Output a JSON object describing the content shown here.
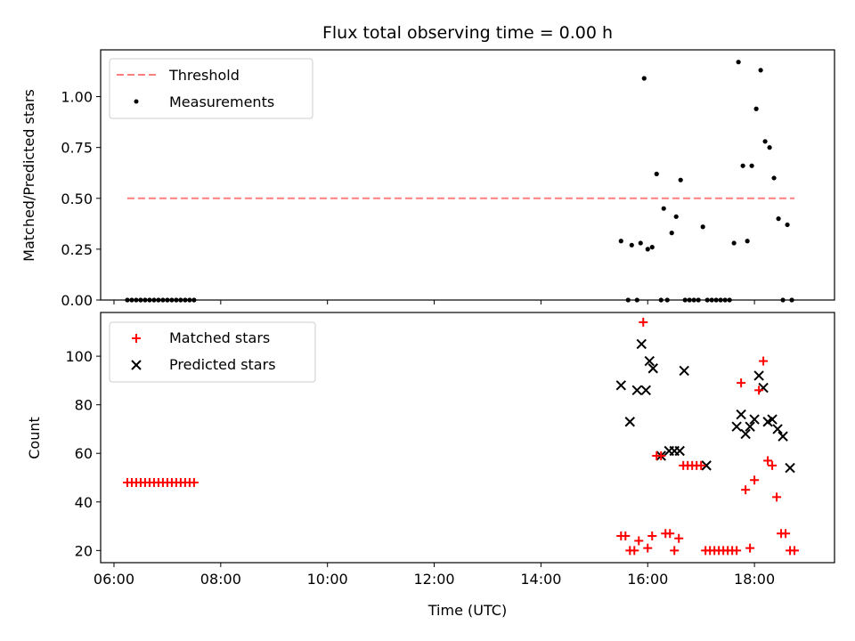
{
  "chart_data": [
    {
      "type": "scatter",
      "title": "Flux total observing time = 0.00 h",
      "ylabel": "Matched/Predicted stars",
      "xlim": [
        "05:45",
        "19:30"
      ],
      "ylim": [
        0,
        1.23
      ],
      "yticks": [
        "0.00",
        "0.25",
        "0.50",
        "0.75",
        "1.00"
      ],
      "ytick_values": [
        0,
        0.25,
        0.5,
        0.75,
        1.0
      ],
      "legend_placement": "upper-left",
      "threshold": {
        "name": "Threshold",
        "color": "#ff7f7f",
        "style": "dashed",
        "y": 0.5,
        "x": [
          "06:15",
          "18:45"
        ]
      },
      "series": [
        {
          "name": "Measurements",
          "color": "#000000",
          "marker": "dot",
          "points": [
            [
              "06:15",
              0
            ],
            [
              "06:20",
              0
            ],
            [
              "06:25",
              0
            ],
            [
              "06:30",
              0
            ],
            [
              "06:35",
              0
            ],
            [
              "06:40",
              0
            ],
            [
              "06:45",
              0
            ],
            [
              "06:50",
              0
            ],
            [
              "06:55",
              0
            ],
            [
              "07:00",
              0
            ],
            [
              "07:05",
              0
            ],
            [
              "07:10",
              0
            ],
            [
              "07:15",
              0
            ],
            [
              "07:20",
              0
            ],
            [
              "07:25",
              0
            ],
            [
              "07:30",
              0
            ],
            [
              "15:30",
              0.29
            ],
            [
              "15:38",
              0
            ],
            [
              "15:42",
              0.27
            ],
            [
              "15:48",
              0
            ],
            [
              "15:52",
              0.28
            ],
            [
              "15:56",
              1.09
            ],
            [
              "16:00",
              0.25
            ],
            [
              "16:05",
              0.26
            ],
            [
              "16:10",
              0.62
            ],
            [
              "16:15",
              0
            ],
            [
              "16:18",
              0.45
            ],
            [
              "16:22",
              0
            ],
            [
              "16:27",
              0.33
            ],
            [
              "16:32",
              0.41
            ],
            [
              "16:37",
              0.59
            ],
            [
              "16:42",
              0
            ],
            [
              "16:47",
              0
            ],
            [
              "16:52",
              0
            ],
            [
              "16:57",
              0
            ],
            [
              "17:02",
              0.36
            ],
            [
              "17:07",
              0
            ],
            [
              "17:12",
              0
            ],
            [
              "17:17",
              0
            ],
            [
              "17:22",
              0
            ],
            [
              "17:27",
              0
            ],
            [
              "17:32",
              0
            ],
            [
              "17:37",
              0.28
            ],
            [
              "17:42",
              1.17
            ],
            [
              "17:47",
              0.66
            ],
            [
              "17:52",
              0.29
            ],
            [
              "17:57",
              0.66
            ],
            [
              "18:02",
              0.94
            ],
            [
              "18:07",
              1.13
            ],
            [
              "18:12",
              0.78
            ],
            [
              "18:17",
              0.75
            ],
            [
              "18:22",
              0.6
            ],
            [
              "18:27",
              0.4
            ],
            [
              "18:32",
              0
            ],
            [
              "18:37",
              0.37
            ],
            [
              "18:42",
              0
            ]
          ]
        }
      ]
    },
    {
      "type": "scatter",
      "xlabel": "Time (UTC)",
      "ylabel": "Count",
      "xlim": [
        "05:45",
        "19:30"
      ],
      "ylim": [
        15,
        118
      ],
      "xticks": [
        "06:00",
        "08:00",
        "10:00",
        "12:00",
        "14:00",
        "16:00",
        "18:00"
      ],
      "yticks": [
        "20",
        "40",
        "60",
        "80",
        "100"
      ],
      "ytick_values": [
        20,
        40,
        60,
        80,
        100
      ],
      "legend_placement": "upper-left",
      "series": [
        {
          "name": "Matched stars",
          "color": "#ff0000",
          "marker": "plus",
          "points": [
            [
              "06:15",
              48
            ],
            [
              "06:20",
              48
            ],
            [
              "06:25",
              48
            ],
            [
              "06:30",
              48
            ],
            [
              "06:35",
              48
            ],
            [
              "06:40",
              48
            ],
            [
              "06:45",
              48
            ],
            [
              "06:50",
              48
            ],
            [
              "06:55",
              48
            ],
            [
              "07:00",
              48
            ],
            [
              "07:05",
              48
            ],
            [
              "07:10",
              48
            ],
            [
              "07:15",
              48
            ],
            [
              "07:20",
              48
            ],
            [
              "07:25",
              48
            ],
            [
              "07:30",
              48
            ],
            [
              "15:30",
              26
            ],
            [
              "15:35",
              26
            ],
            [
              "15:40",
              20
            ],
            [
              "15:45",
              20
            ],
            [
              "15:50",
              24
            ],
            [
              "15:55",
              114
            ],
            [
              "16:00",
              21
            ],
            [
              "16:05",
              26
            ],
            [
              "16:10",
              59
            ],
            [
              "16:15",
              59
            ],
            [
              "16:20",
              27
            ],
            [
              "16:25",
              27
            ],
            [
              "16:30",
              20
            ],
            [
              "16:35",
              25
            ],
            [
              "16:40",
              55
            ],
            [
              "16:45",
              55
            ],
            [
              "16:50",
              55
            ],
            [
              "16:55",
              55
            ],
            [
              "17:00",
              55
            ],
            [
              "17:05",
              20
            ],
            [
              "17:10",
              20
            ],
            [
              "17:15",
              20
            ],
            [
              "17:20",
              20
            ],
            [
              "17:25",
              20
            ],
            [
              "17:30",
              20
            ],
            [
              "17:35",
              20
            ],
            [
              "17:40",
              20
            ],
            [
              "17:45",
              89
            ],
            [
              "17:50",
              45
            ],
            [
              "17:55",
              21
            ],
            [
              "18:00",
              49
            ],
            [
              "18:05",
              86
            ],
            [
              "18:10",
              98
            ],
            [
              "18:15",
              57
            ],
            [
              "18:20",
              55
            ],
            [
              "18:25",
              42
            ],
            [
              "18:30",
              27
            ],
            [
              "18:35",
              27
            ],
            [
              "18:40",
              20
            ],
            [
              "18:45",
              20
            ]
          ]
        },
        {
          "name": "Predicted stars",
          "color": "#000000",
          "marker": "x",
          "points": [
            [
              "15:30",
              88
            ],
            [
              "15:40",
              73
            ],
            [
              "15:48",
              86
            ],
            [
              "15:53",
              105
            ],
            [
              "15:58",
              86
            ],
            [
              "16:02",
              98
            ],
            [
              "16:06",
              95
            ],
            [
              "16:15",
              59
            ],
            [
              "16:24",
              61
            ],
            [
              "16:30",
              61
            ],
            [
              "16:36",
              61
            ],
            [
              "16:41",
              94
            ],
            [
              "17:06",
              55
            ],
            [
              "17:40",
              71
            ],
            [
              "17:45",
              76
            ],
            [
              "17:50",
              68
            ],
            [
              "17:55",
              71
            ],
            [
              "18:00",
              74
            ],
            [
              "18:05",
              92
            ],
            [
              "18:10",
              87
            ],
            [
              "18:15",
              73
            ],
            [
              "18:20",
              74
            ],
            [
              "18:26",
              70
            ],
            [
              "18:32",
              67
            ],
            [
              "18:40",
              54
            ]
          ]
        }
      ]
    }
  ]
}
